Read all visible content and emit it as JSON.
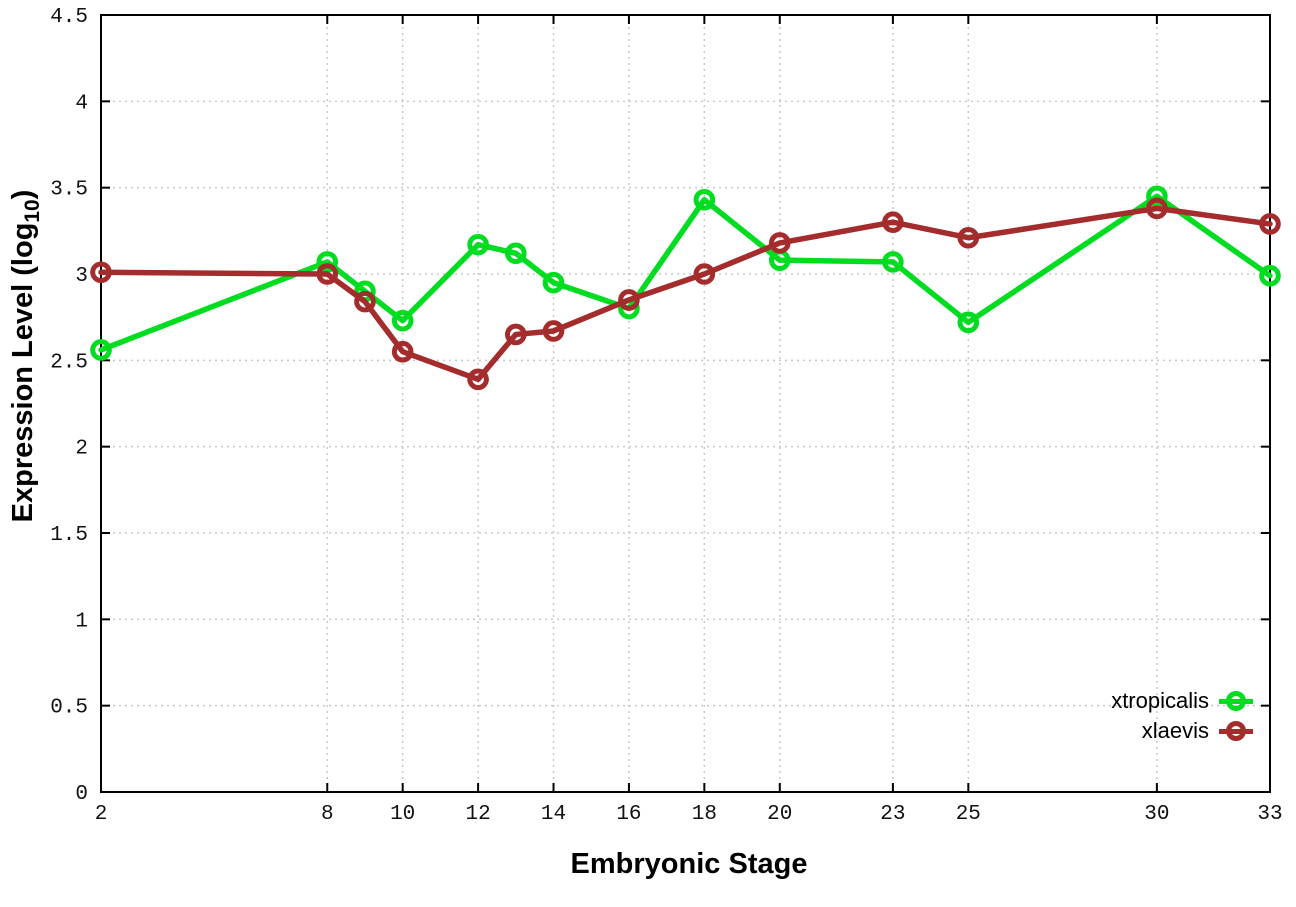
{
  "chart_data": {
    "type": "line",
    "title": "",
    "xlabel": "Embryonic Stage",
    "ylabel_prefix": "Expression Level (log",
    "ylabel_sub": "10",
    "ylabel_suffix": ")",
    "x": [
      2,
      8,
      9,
      10,
      12,
      13,
      14,
      16,
      18,
      20,
      23,
      25,
      30,
      33
    ],
    "series": [
      {
        "name": "xtropicalis",
        "color": "#00dd20",
        "values": [
          2.56,
          3.07,
          2.9,
          2.73,
          3.17,
          3.12,
          2.95,
          2.8,
          3.43,
          3.08,
          3.07,
          2.72,
          3.45,
          2.99
        ]
      },
      {
        "name": "xlaevis",
        "color": "#a42c2c",
        "values": [
          3.01,
          3.0,
          2.84,
          2.55,
          2.39,
          2.65,
          2.67,
          2.85,
          3.0,
          3.18,
          3.3,
          3.21,
          3.38,
          3.29
        ]
      }
    ],
    "xlim": [
      2,
      33
    ],
    "ylim": [
      0,
      4.5
    ],
    "x_ticks": [
      2,
      8,
      10,
      12,
      14,
      16,
      18,
      20,
      23,
      25,
      30,
      33
    ],
    "y_ticks": [
      0,
      0.5,
      1,
      1.5,
      2,
      2.5,
      3,
      3.5,
      4,
      4.5
    ],
    "grid": true,
    "legend_position": "inside-bottom-right",
    "axis_color": "#000000",
    "grid_color": "#c8c8c8",
    "tick_label_color": "#111111",
    "background": "#ffffff"
  }
}
